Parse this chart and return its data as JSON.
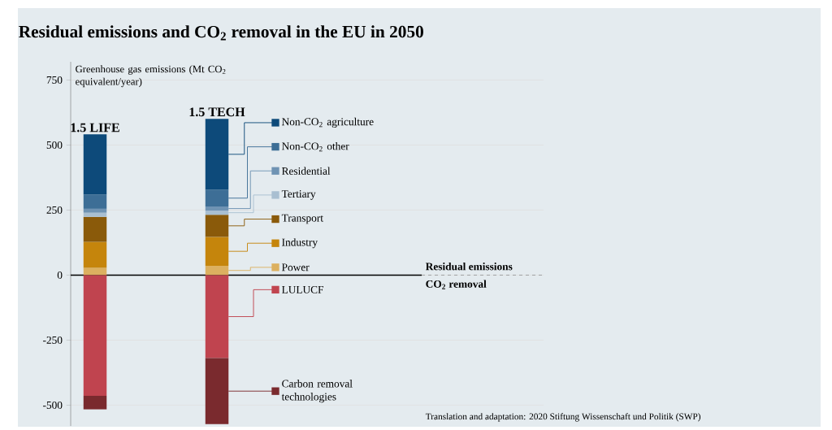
{
  "chart_data": {
    "type": "bar",
    "title": "Residual emissions and CO$_{2}$ removal in the EU in 2050",
    "ylabel": "Greenhouse gas emissions (Mt CO$_{2}$ equivalent/year)",
    "categories": [
      "1.5 LIFE",
      "1.5 TECH"
    ],
    "stacked": true,
    "series": [
      {
        "name": "Power",
        "color": "#dcb060",
        "values": [
          28,
          36
        ]
      },
      {
        "name": "Industry",
        "color": "#c5850c",
        "values": [
          100,
          111
        ]
      },
      {
        "name": "Transport",
        "color": "#8a5a0a",
        "values": [
          96,
          85
        ]
      },
      {
        "name": "Tertiary",
        "color": "#a9bfd1",
        "values": [
          16,
          16
        ]
      },
      {
        "name": "Residential",
        "color": "#6f93b3",
        "values": [
          15,
          16
        ]
      },
      {
        "name": "Non-CO$_{2}$ other",
        "color": "#3d6e96",
        "values": [
          55,
          64
        ]
      },
      {
        "name": "Non-CO$_{2}$ agriculture",
        "color": "#0d4a7a",
        "values": [
          231,
          273
        ]
      },
      {
        "name": "LULUCF",
        "color": "#c0444f",
        "values": [
          -464,
          -319
        ]
      },
      {
        "name": "Carbon removal technologies",
        "color": "#7a2a2e",
        "values": [
          -52,
          -254
        ]
      }
    ],
    "ylim": [
      -580,
      820
    ],
    "yticks": [
      -500,
      -250,
      0,
      250,
      500,
      750
    ],
    "grid": "y",
    "tick_labels": "y",
    "legend": "right",
    "ref_lines": [
      {
        "axis": "y",
        "value": 0,
        "color": "#000000"
      }
    ],
    "annotations": [
      "Residual emissions",
      "CO$_{2}$ removal",
      "Translation and adaptation: 2020 Stiftung Wissenschaft und Politik (SWP)"
    ]
  }
}
